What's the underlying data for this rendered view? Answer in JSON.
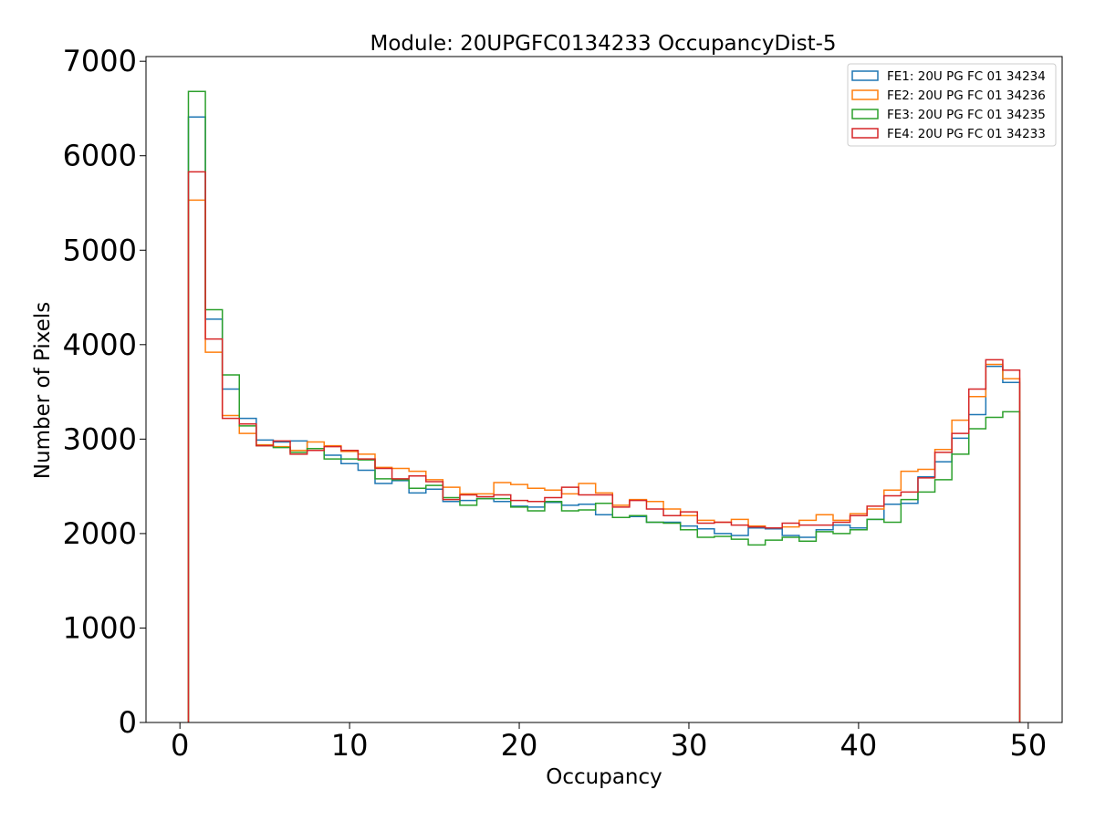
{
  "chart_data": {
    "type": "histogram-step",
    "title": "Module: 20UPGFC0134233 OccupancyDist-5",
    "xlabel": "Occupancy",
    "ylabel": "Number of Pixels",
    "xlim": [
      -2,
      52
    ],
    "ylim": [
      0,
      7050
    ],
    "xticks": [
      0,
      10,
      20,
      30,
      40,
      50
    ],
    "yticks": [
      0,
      1000,
      2000,
      3000,
      4000,
      5000,
      6000,
      7000
    ],
    "grid": false,
    "legend_position": "top-right",
    "bin_edges_start": 0.5,
    "bin_width": 1,
    "series": [
      {
        "name": "FE1: 20U PG FC 01 34234",
        "color": "#1f77b4",
        "values": [
          6410,
          4270,
          3530,
          3220,
          2990,
          2970,
          2980,
          2880,
          2830,
          2740,
          2670,
          2530,
          2560,
          2430,
          2470,
          2340,
          2350,
          2370,
          2340,
          2290,
          2280,
          2330,
          2300,
          2310,
          2200,
          2170,
          2180,
          2120,
          2120,
          2080,
          2050,
          2000,
          1980,
          2060,
          2050,
          1980,
          1960,
          2040,
          2090,
          2060,
          2150,
          2310,
          2320,
          2600,
          2760,
          3010,
          3260,
          3770,
          3600
        ]
      },
      {
        "name": "FE2: 20U PG FC 01 34236",
        "color": "#ff7f0e",
        "values": [
          5530,
          3920,
          3250,
          3060,
          2940,
          2920,
          2880,
          2970,
          2930,
          2870,
          2840,
          2700,
          2690,
          2660,
          2570,
          2490,
          2420,
          2420,
          2540,
          2520,
          2480,
          2460,
          2420,
          2530,
          2430,
          2300,
          2360,
          2340,
          2260,
          2190,
          2140,
          2120,
          2150,
          2080,
          2060,
          2070,
          2140,
          2200,
          2140,
          2210,
          2260,
          2460,
          2660,
          2680,
          2890,
          3200,
          3450,
          3790,
          3640
        ]
      },
      {
        "name": "FE3: 20U PG FC 01 34235",
        "color": "#2ca02c",
        "values": [
          6680,
          4370,
          3680,
          3140,
          2930,
          2910,
          2860,
          2900,
          2790,
          2790,
          2780,
          2580,
          2570,
          2480,
          2510,
          2380,
          2300,
          2370,
          2370,
          2280,
          2240,
          2340,
          2240,
          2250,
          2320,
          2170,
          2190,
          2120,
          2110,
          2040,
          1960,
          1970,
          1940,
          1880,
          1930,
          1960,
          1920,
          2020,
          2000,
          2040,
          2150,
          2120,
          2360,
          2440,
          2570,
          2840,
          3110,
          3230,
          3290
        ]
      },
      {
        "name": "FE4: 20U PG FC 01 34233",
        "color": "#d62728",
        "values": [
          5830,
          4060,
          3220,
          3160,
          2930,
          2980,
          2840,
          2880,
          2920,
          2880,
          2790,
          2690,
          2580,
          2610,
          2550,
          2360,
          2410,
          2390,
          2410,
          2350,
          2340,
          2380,
          2490,
          2410,
          2410,
          2280,
          2350,
          2260,
          2190,
          2230,
          2110,
          2120,
          2090,
          2070,
          2060,
          2110,
          2090,
          2090,
          2120,
          2190,
          2290,
          2400,
          2440,
          2590,
          2860,
          3060,
          3530,
          3840,
          3730
        ]
      }
    ]
  }
}
